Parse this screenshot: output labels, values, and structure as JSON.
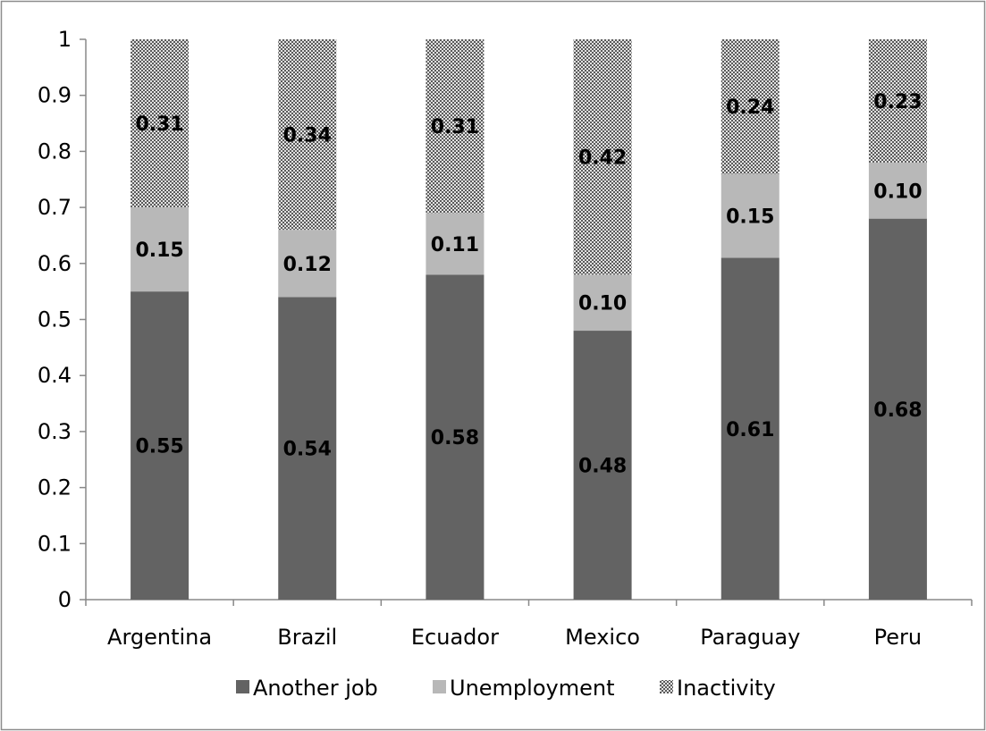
{
  "chart_data": {
    "type": "bar",
    "stacked": true,
    "categories": [
      "Argentina",
      "Brazil",
      "Ecuador",
      "Mexico",
      "Paraguay",
      "Peru"
    ],
    "series": [
      {
        "name": "Another job",
        "values": [
          0.55,
          0.54,
          0.58,
          0.48,
          0.61,
          0.68
        ],
        "labels": [
          "0.55",
          "0.54",
          "0.58",
          "0.48",
          "0.61",
          "0.68"
        ],
        "color": "#636363",
        "pattern": "solid"
      },
      {
        "name": "Unemployment",
        "values": [
          0.15,
          0.12,
          0.11,
          0.1,
          0.15,
          0.1
        ],
        "labels": [
          "0.15",
          "0.12",
          "0.11",
          "0.10",
          "0.15",
          "0.10"
        ],
        "color": "#b8b8b8",
        "pattern": "solid"
      },
      {
        "name": "Inactivity",
        "values": [
          0.31,
          0.34,
          0.31,
          0.42,
          0.24,
          0.23
        ],
        "labels": [
          "0.31",
          "0.34",
          "0.31",
          "0.42",
          "0.24",
          "0.23"
        ],
        "color": "#5a5a5a",
        "pattern": "checker"
      }
    ],
    "ylim": [
      0,
      1
    ],
    "yticks": [
      "0",
      "0.1",
      "0.2",
      "0.3",
      "0.4",
      "0.5",
      "0.6",
      "0.7",
      "0.8",
      "0.9",
      "1"
    ],
    "grid": false,
    "legend_position": "bottom"
  }
}
